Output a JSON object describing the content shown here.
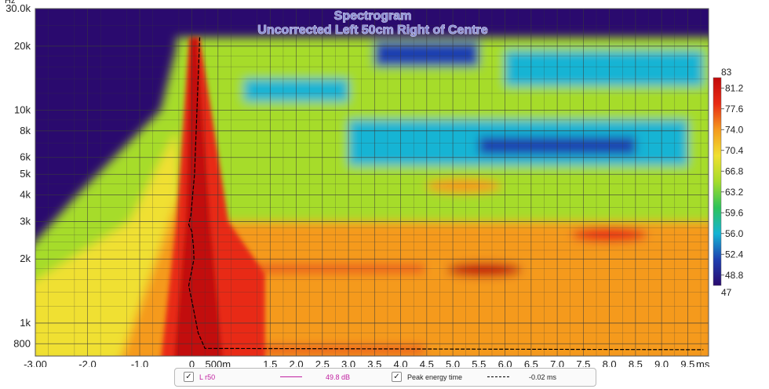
{
  "chart_data": {
    "type": "heatmap",
    "title": "Spectrogram",
    "subtitle": "Uncorrected Left 50cm Right of Centre",
    "x_unit": "ms",
    "y_unit": "Hz",
    "x_range": [
      -3.0,
      9.9
    ],
    "y_range_hz": [
      700,
      30000
    ],
    "x_ticks": [
      {
        "v": -3.0,
        "label": "-3.00"
      },
      {
        "v": -2.0,
        "label": "-2.0"
      },
      {
        "v": -1.0,
        "label": "-1.0"
      },
      {
        "v": 0.0,
        "label": "0"
      },
      {
        "v": 0.5,
        "label": "500m"
      },
      {
        "v": 1.5,
        "label": "1.5"
      },
      {
        "v": 2.0,
        "label": "2.0"
      },
      {
        "v": 2.5,
        "label": "2.5"
      },
      {
        "v": 3.0,
        "label": "3.0"
      },
      {
        "v": 3.5,
        "label": "3.5"
      },
      {
        "v": 4.0,
        "label": "4.0"
      },
      {
        "v": 4.5,
        "label": "4.5"
      },
      {
        "v": 5.0,
        "label": "5.0"
      },
      {
        "v": 5.5,
        "label": "5.5"
      },
      {
        "v": 6.0,
        "label": "6.0"
      },
      {
        "v": 6.5,
        "label": "6.5"
      },
      {
        "v": 7.0,
        "label": "7.0"
      },
      {
        "v": 7.5,
        "label": "7.5"
      },
      {
        "v": 8.0,
        "label": "8.0"
      },
      {
        "v": 8.5,
        "label": "8.5"
      },
      {
        "v": 9.0,
        "label": "9.0"
      },
      {
        "v": 9.5,
        "label": "9.5"
      }
    ],
    "y_ticks": [
      {
        "v": 30000,
        "label": "30.0k"
      },
      {
        "v": 20000,
        "label": "20k"
      },
      {
        "v": 10000,
        "label": "10k"
      },
      {
        "v": 8000,
        "label": "8k"
      },
      {
        "v": 6000,
        "label": "6k"
      },
      {
        "v": 5000,
        "label": "5k"
      },
      {
        "v": 4000,
        "label": "4k"
      },
      {
        "v": 3000,
        "label": "3k"
      },
      {
        "v": 2000,
        "label": "2k"
      },
      {
        "v": 1000,
        "label": "1k"
      },
      {
        "v": 800,
        "label": "800"
      }
    ],
    "colorbar": {
      "min": 47,
      "max": 83,
      "min_label": "47",
      "max_label": "83",
      "tick_labels": [
        "81.2",
        "77.6",
        "74.0",
        "70.4",
        "66.8",
        "63.2",
        "59.6",
        "56.0",
        "52.4",
        "48.8"
      ],
      "tick_values": [
        81.2,
        77.6,
        74.0,
        70.4,
        66.8,
        63.2,
        59.6,
        56.0,
        52.4,
        48.8
      ],
      "colors": [
        "#2a0a6e",
        "#1e3fb0",
        "#14b4d4",
        "#2ec35a",
        "#a6dc2a",
        "#f0e030",
        "#f59a1e",
        "#e82a14",
        "#c20a0a"
      ]
    },
    "data_cutoff_hz": 22000,
    "peak_energy_time": [
      {
        "hz": 22000,
        "ms": 0.15
      },
      {
        "hz": 5000,
        "ms": 0.05
      },
      {
        "hz": 3200,
        "ms": -0.02
      },
      {
        "hz": 2900,
        "ms": -0.06
      },
      {
        "hz": 2700,
        "ms": 0.0
      },
      {
        "hz": 2300,
        "ms": 0.03
      },
      {
        "hz": 2000,
        "ms": 0.04
      },
      {
        "hz": 1500,
        "ms": -0.06
      },
      {
        "hz": 1200,
        "ms": 0.02
      },
      {
        "hz": 900,
        "ms": 0.12
      },
      {
        "hz": 760,
        "ms": 0.25
      },
      {
        "hz": 750,
        "ms": 9.8
      }
    ],
    "features": [
      {
        "type": "ridge",
        "t": 0.0,
        "value": 82
      },
      {
        "type": "band",
        "hz": 1800,
        "t_end": 9.9,
        "value": 78
      },
      {
        "type": "band",
        "hz": 750,
        "t_end": 9.9,
        "value": 80
      },
      {
        "type": "blob",
        "hz": 1780,
        "t": 5.6,
        "value": 82
      },
      {
        "type": "blob",
        "hz": 2600,
        "t": 8.0,
        "value": 80
      },
      {
        "type": "blob",
        "hz": 4400,
        "t": 5.2,
        "value": 72
      }
    ]
  },
  "legend": {
    "items": [
      {
        "checked": true,
        "name": "L r50",
        "value": "49.8 dB",
        "color": "#c020a0"
      },
      {
        "checked": true,
        "name": "Peak energy time",
        "value": "-0.02 ms",
        "color": "#000000"
      }
    ]
  }
}
